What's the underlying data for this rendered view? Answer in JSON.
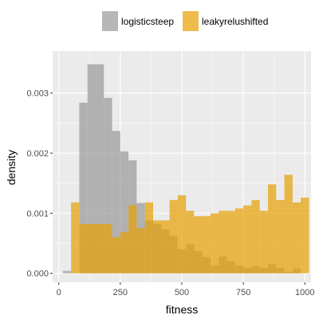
{
  "chart_data": {
    "type": "histogram",
    "xlabel": "fitness",
    "ylabel": "density",
    "xlim": [
      -25,
      1025
    ],
    "ylim": [
      -0.00015,
      0.0037
    ],
    "x_ticks": [
      0,
      250,
      500,
      750,
      1000
    ],
    "x_tick_labels": [
      "0",
      "250",
      "500",
      "750",
      "1000"
    ],
    "y_ticks": [
      0.0,
      0.001,
      0.002,
      0.003
    ],
    "y_tick_labels": [
      "0.000",
      "0.001",
      "0.002",
      "0.003"
    ],
    "bin_width": 33.3,
    "bin_starts": [
      16.7,
      50,
      83.3,
      116.7,
      150,
      183.3,
      216.7,
      250,
      283.3,
      316.7,
      350,
      383.3,
      416.7,
      450,
      483.3,
      516.7,
      550,
      583.3,
      616.7,
      650,
      683.3,
      716.7,
      750,
      783.3,
      816.7,
      850,
      883.3,
      916.7,
      950,
      983.3
    ],
    "grid": true,
    "legend_position": "top",
    "series": [
      {
        "name": "logisticsteep",
        "color": "#999999",
        "opacity": 0.7,
        "values": [
          4e-05,
          0.0,
          0.00284,
          0.00348,
          0.00348,
          0.00292,
          0.00237,
          0.00203,
          0.00188,
          0.00117,
          0.00088,
          0.00082,
          0.00073,
          0.00062,
          0.0004,
          0.00049,
          0.00037,
          0.00027,
          0.00013,
          0.00028,
          0.0002,
          0.00013,
          9e-05,
          0.00012,
          9e-05,
          0.00016,
          9e-05,
          2e-05,
          8e-05,
          0.0
        ]
      },
      {
        "name": "leakyrelushifted",
        "color": "#E69F00",
        "opacity": 0.7,
        "values": [
          0.0,
          0.00118,
          0.00082,
          0.00082,
          0.00082,
          0.00082,
          0.0006,
          0.00069,
          0.00113,
          0.00075,
          0.00118,
          0.00088,
          0.00088,
          0.00122,
          0.0013,
          0.00104,
          0.00095,
          0.00095,
          0.001,
          0.00104,
          0.00104,
          0.00108,
          0.00113,
          0.00122,
          0.00104,
          0.00148,
          0.00122,
          0.00164,
          0.00118,
          0.00126
        ]
      }
    ]
  }
}
